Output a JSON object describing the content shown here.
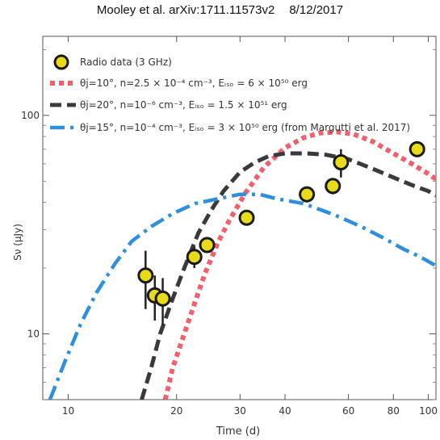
{
  "header": {
    "authors": "Mooley et al. arXiv:1711.11573v2",
    "date": "8/12/2017"
  },
  "chart_data": {
    "type": "scatter",
    "xlabel": "Time (d)",
    "ylabel": "Sν (μJy)",
    "xscale": "log",
    "yscale": "log",
    "xlim": [
      8.5,
      105
    ],
    "ylim": [
      5,
      230
    ],
    "x_ticks": [
      10,
      20,
      30,
      40,
      60,
      80,
      100
    ],
    "y_ticks": [
      10,
      100
    ],
    "legend_position": "top-left",
    "grid": false,
    "series": [
      {
        "name": "Radio data (3 GHz)",
        "kind": "points",
        "color": "#e8dc18",
        "points": [
          {
            "x": 16.4,
            "y": 18.5,
            "err": 5.5
          },
          {
            "x": 17.4,
            "y": 15.0,
            "err": 3.5
          },
          {
            "x": 18.3,
            "y": 14.5,
            "err": 3.5
          },
          {
            "x": 22.4,
            "y": 22.5,
            "err": 2.5
          },
          {
            "x": 24.3,
            "y": 25.5,
            "err": 2.0
          },
          {
            "x": 31.3,
            "y": 34.0,
            "err": 2.5
          },
          {
            "x": 46.0,
            "y": 43.5,
            "err": 3.5
          },
          {
            "x": 54.3,
            "y": 47.5,
            "err": 4.0
          },
          {
            "x": 57.2,
            "y": 61.0,
            "err": 9.0
          },
          {
            "x": 93.1,
            "y": 70.0,
            "err": 5.0
          }
        ]
      },
      {
        "name": "θj=10°, n=2.5 × 10⁻⁴ cm⁻³, Eᵢₛₒ = 6 × 10⁵⁰ erg",
        "kind": "line",
        "style": "dotted",
        "color": "#f0606e",
        "points": [
          [
            18.6,
            5
          ],
          [
            19.5,
            7
          ],
          [
            21,
            10
          ],
          [
            22.5,
            14
          ],
          [
            24,
            19
          ],
          [
            26,
            26
          ],
          [
            28,
            33
          ],
          [
            31,
            44
          ],
          [
            35,
            58
          ],
          [
            40,
            71
          ],
          [
            45,
            79
          ],
          [
            50,
            83
          ],
          [
            56,
            84
          ],
          [
            62,
            82
          ],
          [
            70,
            76
          ],
          [
            80,
            67
          ],
          [
            90,
            60
          ],
          [
            100,
            54
          ],
          [
            105,
            51
          ]
        ]
      },
      {
        "name": "θj=20°, n=10⁻⁶ cm⁻³, Eᵢₛₒ = 1.5 × 10⁵¹ erg",
        "kind": "line",
        "style": "dashed",
        "color": "#3a3a3a",
        "points": [
          [
            16.0,
            5
          ],
          [
            17,
            7
          ],
          [
            18,
            10
          ],
          [
            19.5,
            14.5
          ],
          [
            21,
            20
          ],
          [
            23,
            29
          ],
          [
            25,
            37
          ],
          [
            27,
            45
          ],
          [
            30,
            55
          ],
          [
            33,
            61
          ],
          [
            36,
            65
          ],
          [
            40,
            67
          ],
          [
            46,
            67
          ],
          [
            52,
            66
          ],
          [
            60,
            63
          ],
          [
            70,
            57
          ],
          [
            80,
            52
          ],
          [
            90,
            48
          ],
          [
            100,
            45
          ],
          [
            105,
            43
          ]
        ]
      },
      {
        "name": "θj=15°, n=10⁻⁴ cm⁻³, Eᵢₛₒ = 3 × 10⁵⁰ erg (from Margutti et al. 2017)",
        "kind": "line",
        "style": "dashdot",
        "color": "#2f8fdc",
        "points": [
          [
            8.9,
            5
          ],
          [
            9.8,
            7.5
          ],
          [
            10.8,
            11
          ],
          [
            12,
            15.5
          ],
          [
            13.5,
            21
          ],
          [
            15,
            26.5
          ],
          [
            17,
            31
          ],
          [
            19.5,
            35.5
          ],
          [
            22.5,
            39.5
          ],
          [
            26,
            41.5
          ],
          [
            30,
            43.5
          ],
          [
            34,
            43.5
          ],
          [
            38,
            41.5
          ],
          [
            45,
            39.5
          ],
          [
            55,
            35
          ],
          [
            65,
            31
          ],
          [
            75,
            27.5
          ],
          [
            85,
            24.5
          ],
          [
            95,
            22.5
          ],
          [
            105,
            20.5
          ]
        ]
      }
    ]
  },
  "legend": [
    {
      "symbol": "points",
      "text": "Radio data (3 GHz)"
    },
    {
      "symbol": "dotted",
      "text": "θj=10°, n=2.5 × 10⁻⁴ cm⁻³, Eᵢₛₒ = 6 × 10⁵⁰ erg"
    },
    {
      "symbol": "dashed",
      "text": "θj=20°, n=10⁻⁶ cm⁻³, Eᵢₛₒ = 1.5 × 10⁵¹ erg"
    },
    {
      "symbol": "dashdot",
      "text": "θj=15°, n=10⁻⁴ cm⁻³, Eᵢₛₒ = 3 × 10⁵⁰ erg (from Margutti et al. 2017)"
    }
  ]
}
